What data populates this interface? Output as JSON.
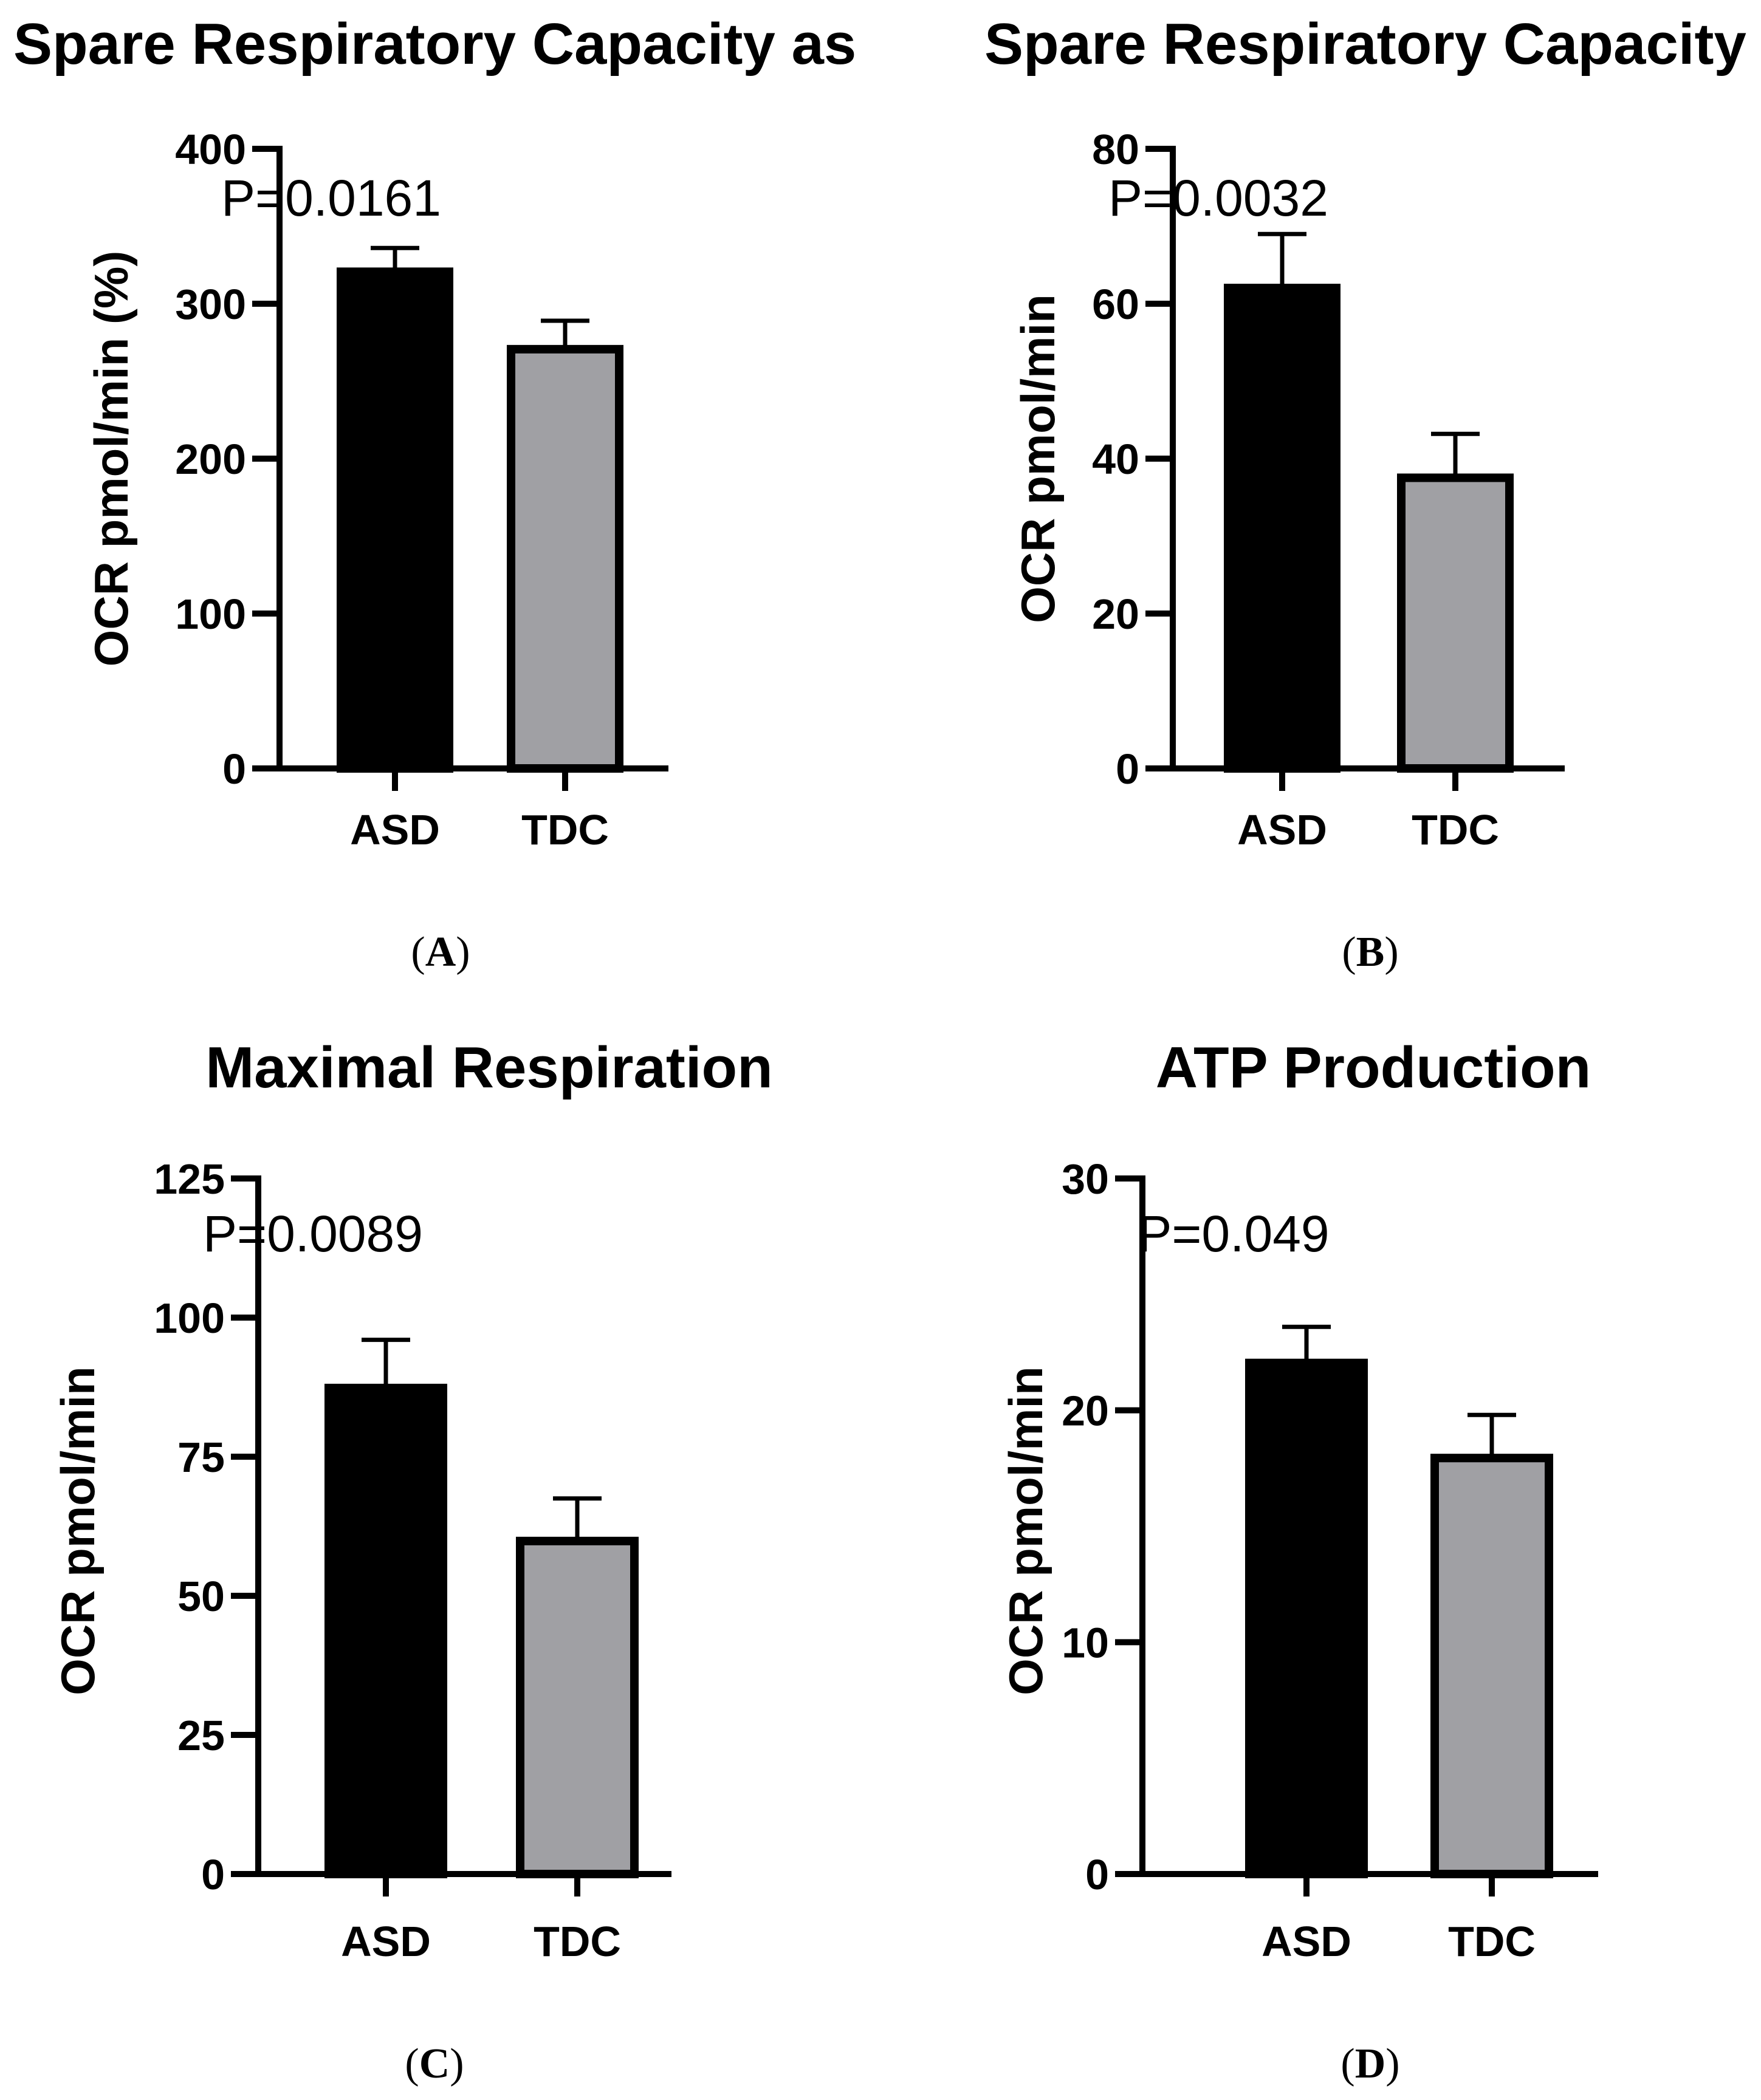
{
  "chart_data": [
    {
      "type": "bar",
      "panel": "A",
      "title": "Spare Respiratory Capacity as",
      "ylabel": "OCR pmol/min (%)",
      "xlabel": "",
      "categories": [
        "ASD",
        "TDC"
      ],
      "values": [
        323,
        273
      ],
      "errors": [
        13,
        16
      ],
      "bar_colors": [
        "#000000",
        "#a0a0a4"
      ],
      "ylim": [
        0,
        400
      ],
      "yticks": [
        0,
        100,
        200,
        300,
        400
      ],
      "annotation": "P=0.0161"
    },
    {
      "type": "bar",
      "panel": "B",
      "title": "Spare Respiratory Capacity",
      "ylabel": "OCR pmol/min",
      "xlabel": "",
      "categories": [
        "ASD",
        "TDC"
      ],
      "values": [
        62.5,
        38
      ],
      "errors": [
        6.5,
        5.2
      ],
      "bar_colors": [
        "#000000",
        "#a0a0a4"
      ],
      "ylim": [
        0,
        80
      ],
      "yticks": [
        0,
        20,
        40,
        60,
        80
      ],
      "annotation": "P=0.0032"
    },
    {
      "type": "bar",
      "panel": "C",
      "title": "Maximal Respiration",
      "ylabel": "OCR pmol/min",
      "xlabel": "",
      "categories": [
        "ASD",
        "TDC"
      ],
      "values": [
        88,
        60.5
      ],
      "errors": [
        8,
        7
      ],
      "bar_colors": [
        "#000000",
        "#a0a0a4"
      ],
      "ylim": [
        0,
        125
      ],
      "yticks": [
        0,
        25,
        50,
        75,
        100,
        125
      ],
      "annotation": "P=0.0089"
    },
    {
      "type": "bar",
      "panel": "D",
      "title": "ATP Production",
      "ylabel": "OCR pmol/min",
      "xlabel": "",
      "categories": [
        "ASD",
        "TDC"
      ],
      "values": [
        22.2,
        18.1
      ],
      "errors": [
        1.4,
        1.7
      ],
      "bar_colors": [
        "#000000",
        "#a0a0a4"
      ],
      "ylim": [
        0,
        30
      ],
      "yticks": [
        0,
        10,
        20,
        30
      ],
      "annotation": "P=0.049"
    }
  ]
}
